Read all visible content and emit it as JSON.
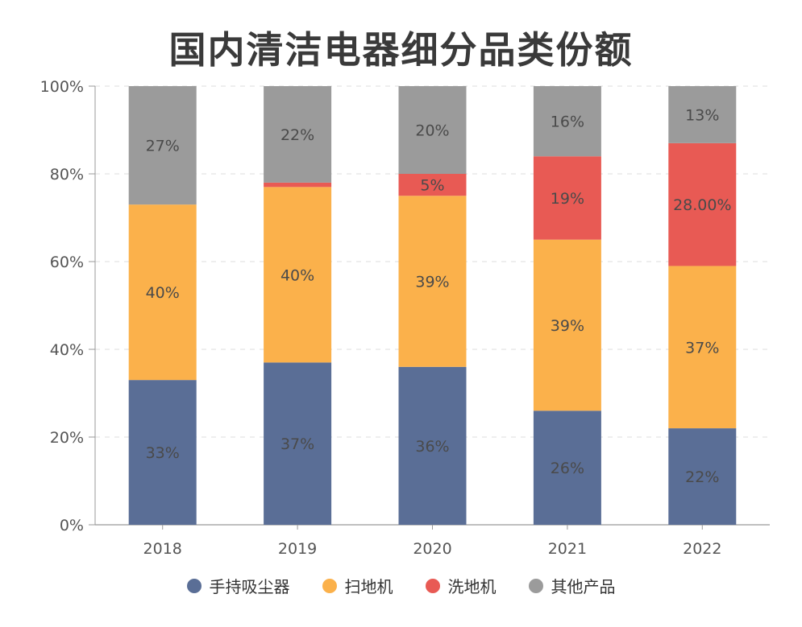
{
  "colors": {
    "handheld": "#5a6e96",
    "sweeper": "#fbb14b",
    "mopper": "#e85a54",
    "other": "#9b9b9b"
  },
  "chart_data": {
    "type": "bar",
    "stacked": true,
    "title": "国内清洁电器细分品类份额",
    "categories": [
      "2018",
      "2019",
      "2020",
      "2021",
      "2022"
    ],
    "ylim": [
      0,
      100
    ],
    "yticks": [
      "0%",
      "20%",
      "40%",
      "60%",
      "80%",
      "100%"
    ],
    "grid": true,
    "legend_position": "bottom",
    "series": [
      {
        "name": "手持吸尘器",
        "color_key": "handheld",
        "values": [
          33,
          37,
          36,
          26,
          22
        ],
        "labels": [
          "33%",
          "37%",
          "36%",
          "26%",
          "22%"
        ]
      },
      {
        "name": "扫地机",
        "color_key": "sweeper",
        "values": [
          40,
          40,
          39,
          39,
          37
        ],
        "labels": [
          "40%",
          "40%",
          "39%",
          "39%",
          "37%"
        ]
      },
      {
        "name": "洗地机",
        "color_key": "mopper",
        "values": [
          0,
          1,
          5,
          19,
          28
        ],
        "labels": [
          "",
          "",
          "5%",
          "19%",
          "28.00%"
        ]
      },
      {
        "name": "其他产品",
        "color_key": "other",
        "values": [
          27,
          22,
          20,
          16,
          13
        ],
        "labels": [
          "27%",
          "22%",
          "20%",
          "16%",
          "13%"
        ]
      }
    ]
  }
}
